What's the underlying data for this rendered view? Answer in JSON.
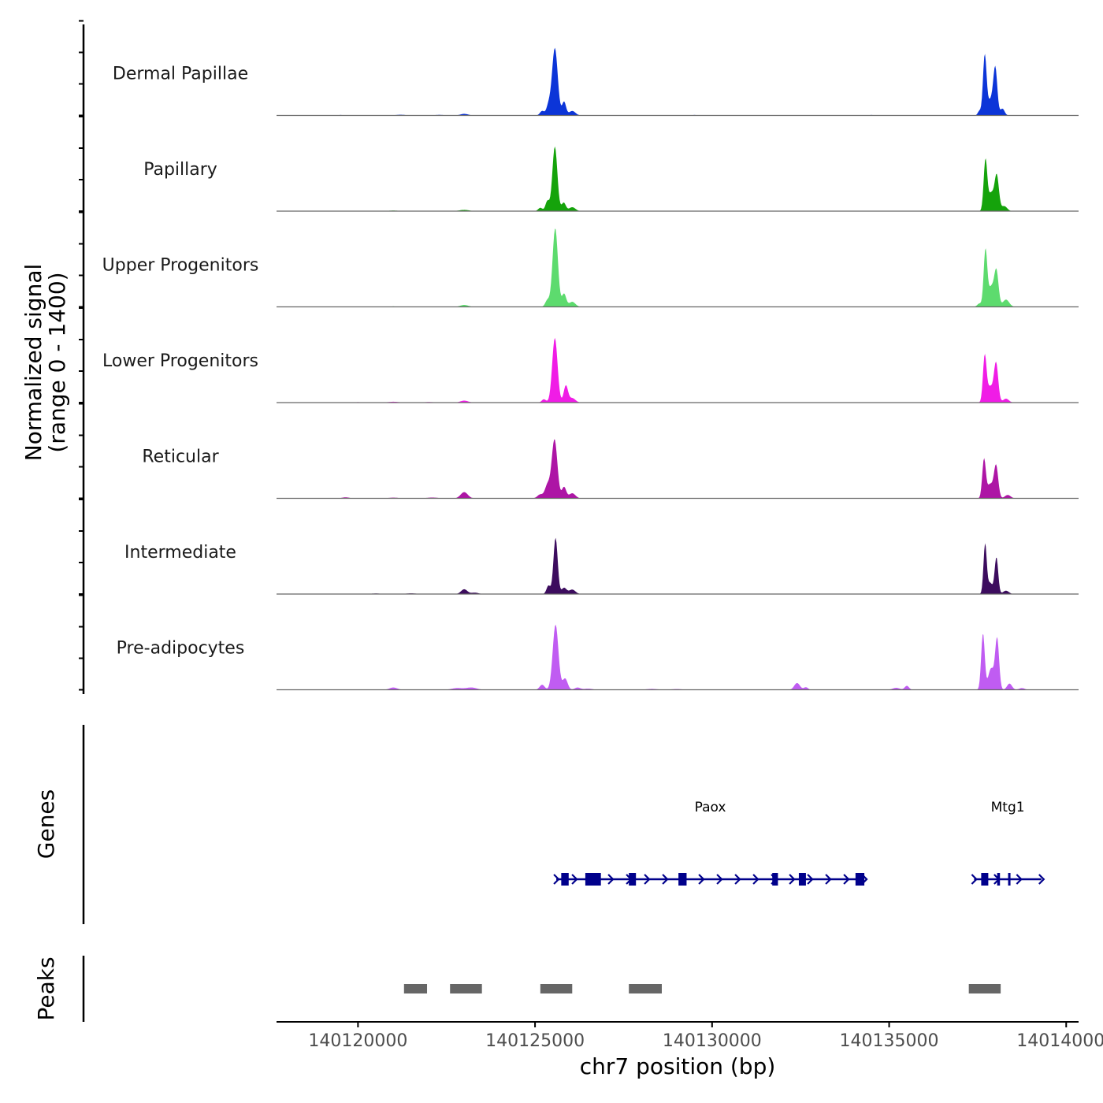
{
  "chart_data": {
    "type": "area",
    "title": "",
    "ylabel_lines": [
      "Normalized signal",
      "(range 0 - 1400)"
    ],
    "y_range": [
      0,
      1400
    ],
    "xlabel": "chr7 position (bp)",
    "x_range": [
      140117700,
      140140350
    ],
    "x_ticks": [
      140120000,
      140125000,
      140130000,
      140135000,
      140140000
    ],
    "x_tick_labels": [
      "140120000",
      "140125000",
      "140130000",
      "140135000",
      "140140000"
    ],
    "grid": false,
    "tracks": [
      {
        "name": "Dermal Papillae",
        "color": "#0c35d8",
        "peaks": [
          [
            140119500,
            8,
            140
          ],
          [
            140121200,
            12,
            150
          ],
          [
            140122300,
            10,
            140
          ],
          [
            140123000,
            28,
            110
          ],
          [
            140125200,
            80,
            60
          ],
          [
            140125380,
            170,
            60
          ],
          [
            140125560,
            1200,
            80
          ],
          [
            140125820,
            240,
            55
          ],
          [
            140126050,
            80,
            90
          ],
          [
            140129500,
            8,
            200
          ],
          [
            140134500,
            8,
            200
          ],
          [
            140137550,
            80,
            45
          ],
          [
            140137700,
            1050,
            50
          ],
          [
            140137870,
            280,
            90
          ],
          [
            140138000,
            780,
            55
          ],
          [
            140138200,
            120,
            60
          ]
        ]
      },
      {
        "name": "Papillary",
        "color": "#15a30b",
        "peaks": [
          [
            140121000,
            10,
            150
          ],
          [
            140123000,
            22,
            140
          ],
          [
            140125150,
            60,
            60
          ],
          [
            140125350,
            180,
            55
          ],
          [
            140125560,
            1150,
            70
          ],
          [
            140125810,
            150,
            60
          ],
          [
            140126050,
            70,
            90
          ],
          [
            140137720,
            900,
            50
          ],
          [
            140137880,
            320,
            80
          ],
          [
            140138040,
            620,
            60
          ],
          [
            140138250,
            90,
            80
          ]
        ]
      },
      {
        "name": "Upper Progenitors",
        "color": "#5ddb6e",
        "peaks": [
          [
            140121000,
            8,
            150
          ],
          [
            140123000,
            35,
            110
          ],
          [
            140125350,
            120,
            60
          ],
          [
            140125570,
            1400,
            75
          ],
          [
            140125820,
            230,
            60
          ],
          [
            140126050,
            90,
            90
          ],
          [
            140137550,
            60,
            60
          ],
          [
            140137720,
            1000,
            50
          ],
          [
            140137880,
            350,
            80
          ],
          [
            140138030,
            620,
            60
          ],
          [
            140138300,
            130,
            90
          ]
        ]
      },
      {
        "name": "Lower Progenitors",
        "color": "#f01ce6",
        "peaks": [
          [
            140120000,
            8,
            150
          ],
          [
            140121000,
            15,
            150
          ],
          [
            140122000,
            10,
            150
          ],
          [
            140123000,
            35,
            110
          ],
          [
            140125250,
            60,
            60
          ],
          [
            140125560,
            1150,
            75
          ],
          [
            140125870,
            300,
            60
          ],
          [
            140126050,
            80,
            90
          ],
          [
            140137700,
            820,
            50
          ],
          [
            140137850,
            280,
            80
          ],
          [
            140138020,
            700,
            60
          ],
          [
            140138300,
            70,
            80
          ]
        ]
      },
      {
        "name": "Reticular",
        "color": "#ad15a5",
        "peaks": [
          [
            140119650,
            18,
            100
          ],
          [
            140121000,
            12,
            150
          ],
          [
            140122100,
            14,
            150
          ],
          [
            140123000,
            110,
            100
          ],
          [
            140125150,
            70,
            80
          ],
          [
            140125350,
            230,
            70
          ],
          [
            140125550,
            1050,
            80
          ],
          [
            140125820,
            200,
            60
          ],
          [
            140126050,
            90,
            90
          ],
          [
            140137680,
            690,
            50
          ],
          [
            140137850,
            250,
            80
          ],
          [
            140138020,
            580,
            60
          ],
          [
            140138350,
            60,
            80
          ]
        ]
      },
      {
        "name": "Intermediate",
        "color": "#3c0c5e",
        "peaks": [
          [
            140120500,
            10,
            150
          ],
          [
            140121500,
            12,
            150
          ],
          [
            140123000,
            85,
            90
          ],
          [
            140123300,
            25,
            100
          ],
          [
            140125380,
            150,
            55
          ],
          [
            140125580,
            1000,
            60
          ],
          [
            140125820,
            110,
            70
          ],
          [
            140126050,
            80,
            90
          ],
          [
            140137710,
            880,
            45
          ],
          [
            140137850,
            200,
            70
          ],
          [
            140138030,
            650,
            50
          ],
          [
            140138300,
            60,
            80
          ]
        ]
      },
      {
        "name": "Pre-adipocytes",
        "color": "#c05cf2",
        "peaks": [
          [
            140121000,
            40,
            110
          ],
          [
            140122800,
            30,
            150
          ],
          [
            140123200,
            40,
            150
          ],
          [
            140125200,
            90,
            70
          ],
          [
            140125580,
            1160,
            80
          ],
          [
            140125850,
            200,
            70
          ],
          [
            140126200,
            40,
            80
          ],
          [
            140126500,
            20,
            120
          ],
          [
            140128300,
            15,
            150
          ],
          [
            140129000,
            12,
            150
          ],
          [
            140132400,
            120,
            80
          ],
          [
            140132650,
            45,
            60
          ],
          [
            140135200,
            35,
            100
          ],
          [
            140135500,
            70,
            60
          ],
          [
            140137650,
            1000,
            50
          ],
          [
            140137880,
            380,
            80
          ],
          [
            140138050,
            900,
            55
          ],
          [
            140138400,
            110,
            70
          ],
          [
            140138750,
            30,
            80
          ]
        ]
      }
    ],
    "genes": [
      {
        "name": "Paox",
        "strand": "+",
        "color": "#00008b",
        "start": 140125600,
        "end": 140134300,
        "exons": [
          [
            140125740,
            140125950
          ],
          [
            140126420,
            140126860
          ],
          [
            140127650,
            140127850
          ],
          [
            140129050,
            140129280
          ],
          [
            140131700,
            140131860
          ],
          [
            140132450,
            140132650
          ],
          [
            140134050,
            140134300
          ]
        ]
      },
      {
        "name": "Mtg1",
        "strand": "+",
        "color": "#00008b",
        "start": 140137400,
        "end": 140139300,
        "exons": [
          [
            140137600,
            140137800
          ],
          [
            140138050,
            140138130
          ],
          [
            140138360,
            140138420
          ]
        ]
      }
    ],
    "genes_label": "Genes",
    "peaks_label": "Peaks",
    "peak_regions": [
      [
        140121300,
        140121950
      ],
      [
        140122600,
        140123500
      ],
      [
        140125150,
        140126050
      ],
      [
        140127650,
        140128580
      ],
      [
        140137250,
        140138150
      ]
    ],
    "peak_color": "#666666"
  }
}
